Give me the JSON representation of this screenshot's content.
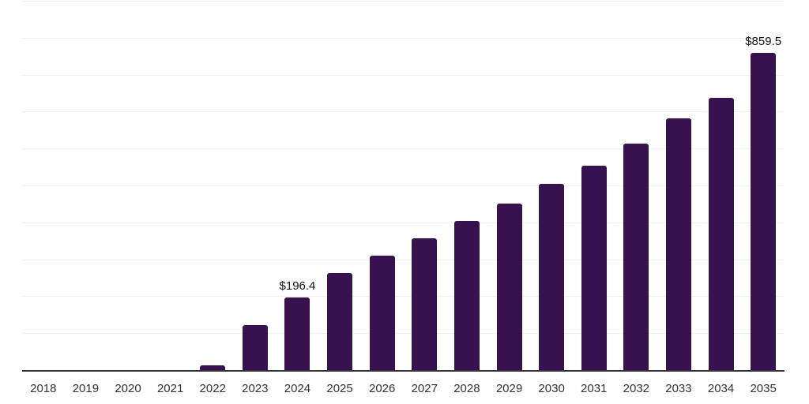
{
  "chart_data": {
    "type": "bar",
    "title": "",
    "xlabel": "",
    "ylabel": "",
    "categories": [
      "2018",
      "2019",
      "2020",
      "2021",
      "2022",
      "2023",
      "2024",
      "2025",
      "2026",
      "2027",
      "2028",
      "2029",
      "2030",
      "2031",
      "2032",
      "2033",
      "2034",
      "2035"
    ],
    "values": [
      0,
      0,
      0,
      0,
      13,
      122,
      196.4,
      262,
      310,
      357,
      404,
      450,
      505,
      553,
      613,
      682,
      737,
      859.5
    ],
    "point_labels": [
      "",
      "",
      "",
      "",
      "",
      "",
      "$196.4",
      "",
      "",
      "",
      "",
      "",
      "",
      "",
      "",
      "",
      "",
      "$859.5"
    ],
    "ylim": [
      0,
      1000
    ],
    "gridline_step": 100,
    "grid": "horizontal",
    "legend": "none",
    "colors": {
      "bar": "#38114F",
      "gridline": "#f0f0f0",
      "axis": "#333333",
      "tick_label": "#333333",
      "data_label": "#111111",
      "background": "#ffffff"
    }
  }
}
